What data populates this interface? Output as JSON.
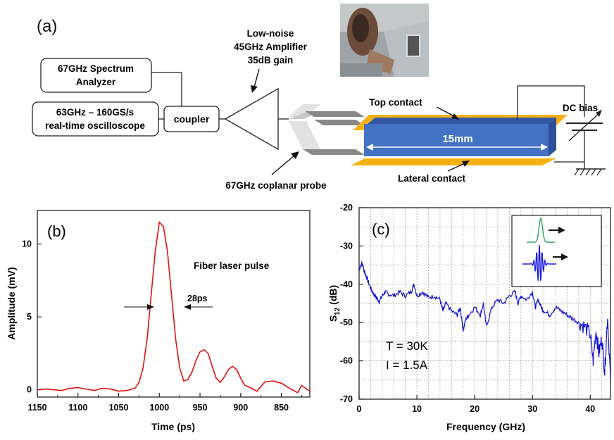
{
  "colors": {
    "gold": "#f5b114",
    "waveguide": "#4472c4",
    "waveguide_edge": "#2c4f99",
    "probe": "#808080",
    "trace_b": "#e0120e",
    "trace_c": "#1010d0",
    "inset_green": "#2ca060",
    "inset_blue": "#1a1ae6"
  },
  "setup": {
    "panel_label": "(a)",
    "spectrum_analyzer": "67GHz Spectrum Analyzer",
    "oscilloscope_line1": "63GHz – 160GS/s",
    "oscilloscope_line2": "real-time oscilloscope",
    "coupler": "coupler",
    "amp_line1": "Low-noise",
    "amp_line2": "45GHz Amplifier",
    "amp_line3": "35dB gain",
    "top_contact": "Top contact",
    "length": "15mm",
    "lateral_contact": "Lateral contact",
    "dc_bias": "DC bias",
    "probe": "67GHz coplanar probe"
  },
  "chart_data": [
    {
      "type": "line",
      "panel_label": "(b)",
      "annotation": "Fiber laser pulse",
      "width_label": "28ps",
      "xlabel": "Time (ps)",
      "ylabel": "Amplitude  (mV)",
      "xlim": [
        1150,
        815
      ],
      "ylim": [
        -0.5,
        12.3
      ],
      "x_ticks": [
        "1150",
        "1100",
        "1050",
        "1000",
        "950",
        "900",
        "850"
      ],
      "y_ticks": [
        "0",
        "5",
        "10"
      ],
      "series": [
        {
          "x": [
            1150,
            1140,
            1130,
            1120,
            1110,
            1100,
            1090,
            1080,
            1070,
            1060,
            1050,
            1040,
            1030,
            1025,
            1020,
            1015,
            1010,
            1005,
            1000,
            995,
            990,
            985,
            980,
            975,
            970,
            965,
            960,
            955,
            950,
            945,
            940,
            935,
            930,
            925,
            920,
            915,
            910,
            905,
            900,
            895,
            890,
            880,
            870,
            860,
            850,
            840,
            830,
            825,
            820,
            815
          ],
          "y": [
            0,
            0.05,
            0,
            -0.05,
            0.1,
            0.15,
            0.05,
            -0.05,
            0.1,
            0.05,
            -0.1,
            -0.05,
            0.1,
            0.5,
            1.5,
            3.5,
            6.5,
            9.5,
            11.5,
            11.2,
            9.5,
            6.5,
            3.5,
            1.5,
            0.6,
            0.7,
            1.2,
            2.0,
            2.6,
            2.75,
            2.5,
            1.6,
            0.8,
            0.5,
            0.9,
            1.4,
            1.6,
            1.4,
            0.8,
            0.3,
            0.2,
            -0.1,
            0.55,
            0.6,
            0.45,
            0.1,
            -0.2,
            0.3,
            0.1,
            -0.1
          ]
        }
      ]
    },
    {
      "type": "line",
      "panel_label": "(c)",
      "xlabel": "Frequency  (GHz)",
      "ylabel_main": "S",
      "ylabel_sub": "12",
      "ylabel_unit": "(dB)",
      "annot_T": "T = 30K",
      "annot_I": "I = 1.5A",
      "xlim": [
        0,
        43.5
      ],
      "ylim": [
        -70,
        -20
      ],
      "grid": true,
      "x_ticks": [
        "0",
        "10",
        "20",
        "30",
        "40"
      ],
      "y_ticks": [
        "-20",
        "-30",
        "-40",
        "-50",
        "-60",
        "-70"
      ],
      "series": [
        {
          "x": [
            0,
            0.5,
            1,
            1.5,
            2,
            2.5,
            3,
            3.5,
            4,
            4.5,
            5,
            6,
            7,
            8,
            9,
            9.5,
            10,
            11,
            12,
            13,
            14,
            14.5,
            15,
            16,
            17,
            17.5,
            18,
            18.5,
            19,
            20,
            21,
            21.5,
            22,
            23,
            24,
            25,
            26,
            27,
            27.5,
            28,
            29,
            30,
            30.5,
            31,
            31.5,
            32,
            33,
            34,
            35,
            36,
            37,
            38,
            39,
            40,
            40.5,
            41,
            41.5,
            42,
            42.5,
            43,
            43.5
          ],
          "y": [
            -36,
            -34.5,
            -37,
            -39,
            -41,
            -42.5,
            -43.5,
            -44.5,
            -43,
            -42,
            -42.5,
            -43,
            -42,
            -43,
            -42,
            -40,
            -43,
            -42,
            -43.5,
            -43,
            -44,
            -47,
            -45,
            -47,
            -48,
            -46,
            -52,
            -49,
            -48,
            -46,
            -48,
            -45,
            -51,
            -46,
            -44,
            -45,
            -43,
            -42,
            -45,
            -43,
            -44,
            -42,
            -46,
            -44,
            -46,
            -47,
            -48,
            -46,
            -47,
            -48,
            -49,
            -50,
            -51,
            -53,
            -60,
            -52,
            -58,
            -54,
            -63,
            -48,
            -65
          ]
        }
      ]
    }
  ]
}
